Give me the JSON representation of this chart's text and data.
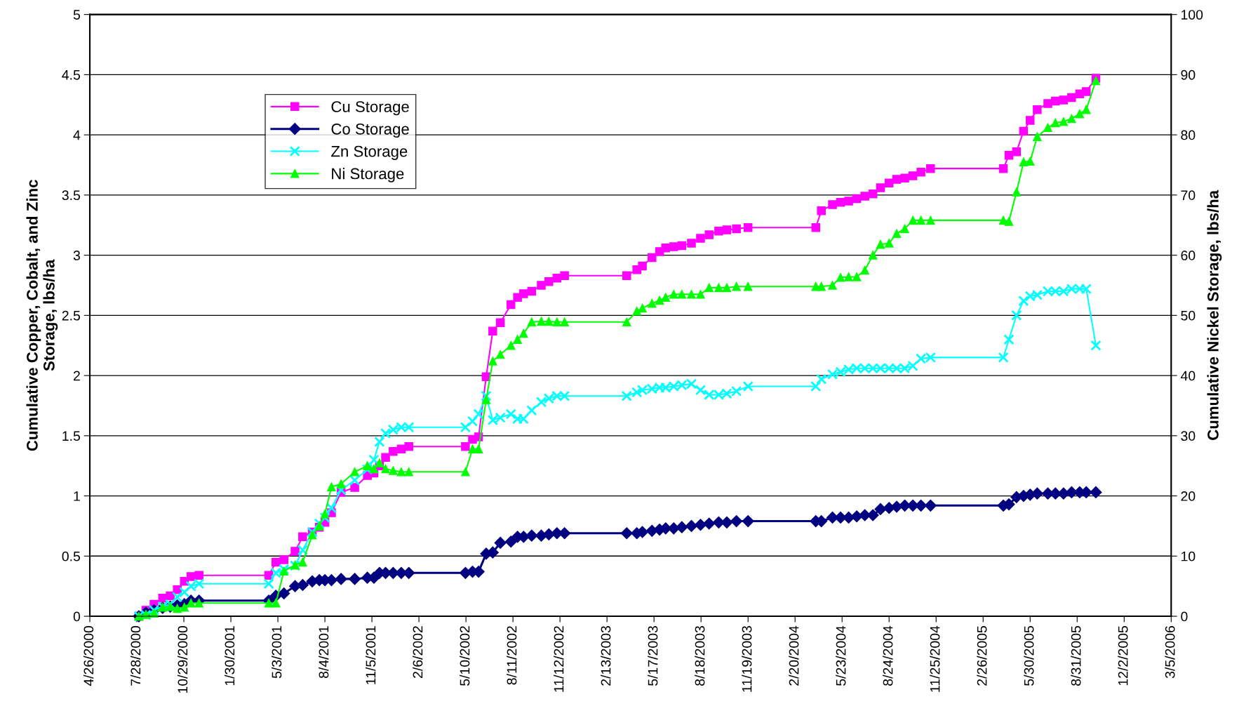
{
  "chart_data": {
    "type": "line",
    "ylabel": "Cumulative Copper, Cobalt, and Zinc\nStorage, lbs/ha",
    "y2label": "Cumulative Nickel Storage, lbs/ha",
    "x": [
      "2000-08-01",
      "2000-08-15",
      "2000-08-31",
      "2000-09-17",
      "2000-10-02",
      "2000-10-16",
      "2000-10-30",
      "2000-11-12",
      "2000-11-28",
      "2001-04-15",
      "2001-04-29",
      "2001-05-15",
      "2001-06-06",
      "2001-06-21",
      "2001-07-10",
      "2001-07-24",
      "2001-08-04",
      "2001-08-17",
      "2001-09-05",
      "2001-10-02",
      "2001-10-27",
      "2001-11-09",
      "2001-11-20",
      "2001-12-02",
      "2001-12-17",
      "2002-01-02",
      "2002-01-17",
      "2002-05-09",
      "2002-05-23",
      "2002-06-04",
      "2002-06-19",
      "2002-07-02",
      "2002-07-17",
      "2002-08-07",
      "2002-08-20",
      "2002-09-01",
      "2002-09-17",
      "2002-10-06",
      "2002-10-21",
      "2002-11-06",
      "2002-11-21",
      "2003-03-24",
      "2003-04-13",
      "2003-04-24",
      "2003-05-13",
      "2003-05-28",
      "2003-06-09",
      "2003-06-25",
      "2003-07-11",
      "2003-07-30",
      "2003-08-17",
      "2003-09-03",
      "2003-09-22",
      "2003-10-08",
      "2003-10-27",
      "2003-11-19",
      "2004-04-01",
      "2004-04-12",
      "2004-05-04",
      "2004-05-20",
      "2004-06-05",
      "2004-06-21",
      "2004-07-07",
      "2004-07-23",
      "2004-08-07",
      "2004-08-24",
      "2004-09-08",
      "2004-09-24",
      "2004-10-10",
      "2004-10-26",
      "2004-11-14",
      "2005-04-07",
      "2005-04-18",
      "2005-05-03",
      "2005-05-17",
      "2005-05-30",
      "2005-06-13",
      "2005-07-04",
      "2005-07-19",
      "2005-08-04",
      "2005-08-20",
      "2005-09-05",
      "2005-09-18",
      "2005-10-07"
    ],
    "series": [
      {
        "name": "Cu Storage",
        "color": "#ff00ff",
        "marker": "square",
        "values": [
          0,
          0.05,
          0.1,
          0.15,
          0.17,
          0.22,
          0.29,
          0.33,
          0.34,
          0.34,
          0.45,
          0.47,
          0.54,
          0.66,
          0.7,
          0.74,
          0.78,
          0.86,
          1.03,
          1.07,
          1.17,
          1.19,
          1.25,
          1.32,
          1.37,
          1.39,
          1.41,
          1.41,
          1.47,
          1.49,
          1.99,
          2.37,
          2.44,
          2.59,
          2.65,
          2.68,
          2.7,
          2.75,
          2.78,
          2.81,
          2.83,
          2.83,
          2.88,
          2.91,
          2.98,
          3.03,
          3.06,
          3.07,
          3.08,
          3.1,
          3.14,
          3.17,
          3.2,
          3.21,
          3.22,
          3.23,
          3.23,
          3.37,
          3.42,
          3.44,
          3.45,
          3.47,
          3.49,
          3.51,
          3.56,
          3.6,
          3.63,
          3.64,
          3.66,
          3.69,
          3.72,
          3.72,
          3.83,
          3.86,
          4.03,
          4.12,
          4.21,
          4.26,
          4.28,
          4.29,
          4.31,
          4.34,
          4.36,
          4.47
        ]
      },
      {
        "name": "Co Storage",
        "color": "#000080",
        "marker": "diamond",
        "values": [
          0,
          0.03,
          0.05,
          0.07,
          0.08,
          0.09,
          0.1,
          0.13,
          0.13,
          0.13,
          0.17,
          0.19,
          0.25,
          0.26,
          0.29,
          0.3,
          0.3,
          0.3,
          0.31,
          0.31,
          0.32,
          0.32,
          0.36,
          0.36,
          0.36,
          0.36,
          0.36,
          0.36,
          0.37,
          0.37,
          0.52,
          0.53,
          0.61,
          0.62,
          0.66,
          0.66,
          0.67,
          0.67,
          0.68,
          0.69,
          0.69,
          0.69,
          0.69,
          0.7,
          0.71,
          0.72,
          0.73,
          0.73,
          0.74,
          0.75,
          0.76,
          0.77,
          0.78,
          0.78,
          0.79,
          0.79,
          0.79,
          0.79,
          0.82,
          0.82,
          0.82,
          0.83,
          0.84,
          0.84,
          0.89,
          0.9,
          0.91,
          0.92,
          0.92,
          0.92,
          0.92,
          0.92,
          0.93,
          0.99,
          1.0,
          1.01,
          1.02,
          1.02,
          1.02,
          1.02,
          1.03,
          1.03,
          1.03,
          1.03
        ]
      },
      {
        "name": "Zn Storage",
        "color": "#00ffff",
        "marker": "cross",
        "values": [
          0,
          0.01,
          0.05,
          0.08,
          0.1,
          0.16,
          0.2,
          0.25,
          0.27,
          0.27,
          0.36,
          0.39,
          0.42,
          0.55,
          0.7,
          0.77,
          0.82,
          0.9,
          1.05,
          1.13,
          1.22,
          1.3,
          1.45,
          1.52,
          1.55,
          1.57,
          1.57,
          1.57,
          1.62,
          1.68,
          1.83,
          1.63,
          1.65,
          1.68,
          1.64,
          1.64,
          1.71,
          1.78,
          1.81,
          1.83,
          1.83,
          1.83,
          1.86,
          1.88,
          1.89,
          1.9,
          1.9,
          1.91,
          1.92,
          1.93,
          1.88,
          1.84,
          1.84,
          1.85,
          1.87,
          1.91,
          1.91,
          1.97,
          2.01,
          2.03,
          2.05,
          2.06,
          2.06,
          2.06,
          2.06,
          2.06,
          2.06,
          2.06,
          2.08,
          2.14,
          2.15,
          2.15,
          2.3,
          2.5,
          2.62,
          2.66,
          2.67,
          2.7,
          2.7,
          2.7,
          2.72,
          2.72,
          2.72,
          2.25
        ]
      },
      {
        "name": "Ni Storage",
        "color": "#00ff00",
        "marker": "triangle",
        "axis": "y2",
        "values": [
          0,
          0.3,
          0.5,
          1.5,
          1.6,
          1.3,
          1.5,
          2.2,
          2.2,
          2.2,
          2.2,
          7.5,
          8.5,
          9,
          13.5,
          15,
          17,
          21.5,
          22,
          24,
          25,
          24.5,
          25.5,
          24.5,
          24.2,
          24,
          24,
          24,
          27.8,
          27.8,
          36,
          42.4,
          43.5,
          45,
          46,
          47,
          48.9,
          49,
          49,
          48.9,
          48.9,
          48.9,
          50.7,
          51.2,
          52,
          52.5,
          53,
          53.5,
          53.5,
          53.5,
          53.5,
          54.6,
          54.6,
          54.6,
          54.8,
          54.8,
          54.8,
          54.8,
          55,
          56.3,
          56.4,
          56.4,
          57.5,
          60,
          61.8,
          62,
          63.6,
          64.4,
          65.8,
          65.8,
          65.8,
          65.8,
          65.6,
          70.5,
          75.5,
          75.6,
          79.7,
          81.2,
          82,
          82.2,
          82.7,
          83.5,
          84.2,
          89
        ]
      }
    ],
    "xlim": [
      "2000-04-26",
      "2006-03-05"
    ],
    "xticks": [
      {
        "value": "2000-04-26",
        "label": "4/26/2000"
      },
      {
        "value": "2000-07-28",
        "label": "7/28/2000"
      },
      {
        "value": "2000-10-29",
        "label": "10/29/2000"
      },
      {
        "value": "2001-01-30",
        "label": "1/30/2001"
      },
      {
        "value": "2001-05-03",
        "label": "5/3/2001"
      },
      {
        "value": "2001-08-04",
        "label": "8/4/2001"
      },
      {
        "value": "2001-11-05",
        "label": "11/5/2001"
      },
      {
        "value": "2002-02-06",
        "label": "2/6/2002"
      },
      {
        "value": "2002-05-10",
        "label": "5/10/2002"
      },
      {
        "value": "2002-08-11",
        "label": "8/11/2002"
      },
      {
        "value": "2002-11-12",
        "label": "11/12/2002"
      },
      {
        "value": "2003-02-13",
        "label": "2/13/2003"
      },
      {
        "value": "2003-05-17",
        "label": "5/17/2003"
      },
      {
        "value": "2003-08-18",
        "label": "8/18/2003"
      },
      {
        "value": "2003-11-19",
        "label": "11/19/2003"
      },
      {
        "value": "2004-02-20",
        "label": "2/20/2004"
      },
      {
        "value": "2004-05-23",
        "label": "5/23/2004"
      },
      {
        "value": "2004-08-24",
        "label": "8/24/2004"
      },
      {
        "value": "2004-11-25",
        "label": "11/25/2004"
      },
      {
        "value": "2005-02-26",
        "label": "2/26/2005"
      },
      {
        "value": "2005-05-30",
        "label": "5/30/2005"
      },
      {
        "value": "2005-08-31",
        "label": "8/31/2005"
      },
      {
        "value": "2005-12-02",
        "label": "12/2/2005"
      },
      {
        "value": "2006-03-05",
        "label": "3/5/2006"
      }
    ],
    "ylim": [
      0,
      5
    ],
    "yticks": [
      0,
      {
        "value": 0.5,
        "label": "0.5"
      },
      1,
      {
        "value": 1.5,
        "label": "1.5"
      },
      2,
      {
        "value": 2.5,
        "label": "2.5"
      },
      3,
      {
        "value": 3.5,
        "label": "3.5"
      },
      4,
      {
        "value": 4.5,
        "label": "4.5"
      },
      5
    ],
    "y2lim": [
      0,
      100
    ],
    "y2ticks": [
      0,
      10,
      20,
      30,
      40,
      50,
      60,
      70,
      80,
      90,
      100
    ],
    "grid": "y",
    "legend": "top left",
    "line_style": "solid"
  }
}
